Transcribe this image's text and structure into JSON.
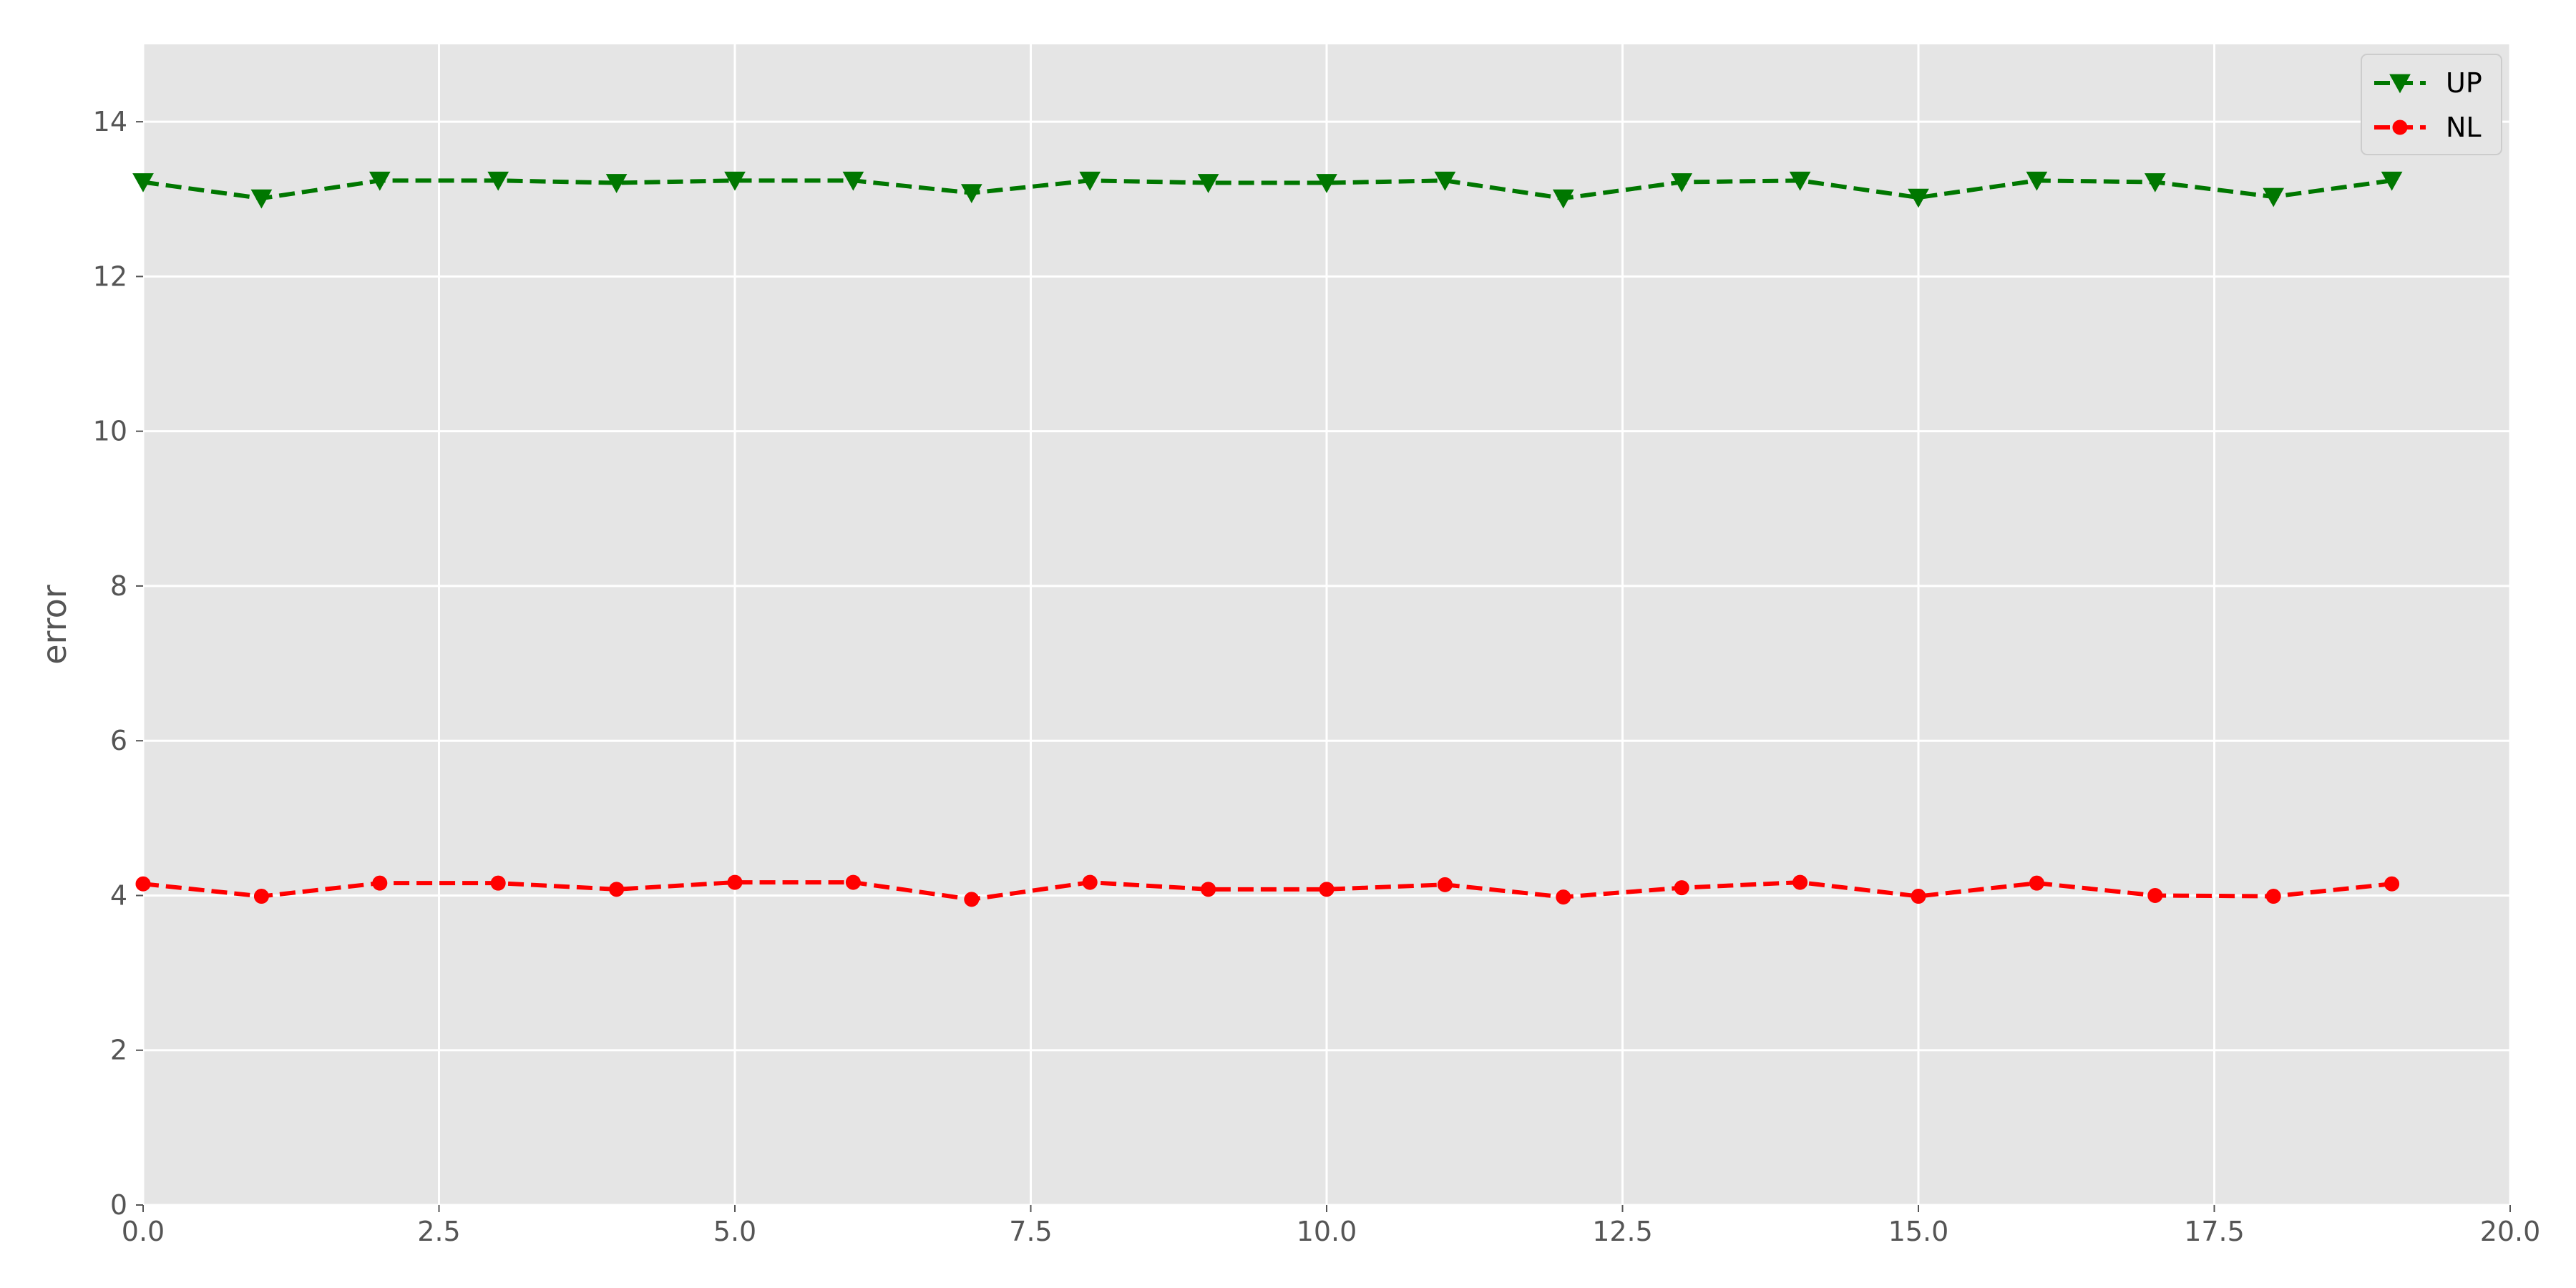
{
  "chart_data": {
    "type": "line",
    "title": "",
    "xlabel": "",
    "ylabel": "error",
    "xlim": [
      0,
      20
    ],
    "ylim": [
      0,
      15
    ],
    "xticks": [
      "0.0",
      "2.5",
      "5.0",
      "7.5",
      "10.0",
      "12.5",
      "15.0",
      "17.5",
      "20.0"
    ],
    "xtick_values": [
      0,
      2.5,
      5,
      7.5,
      10,
      12.5,
      15,
      17.5,
      20
    ],
    "yticks": [
      "0",
      "2",
      "4",
      "6",
      "8",
      "10",
      "12",
      "14"
    ],
    "ytick_values": [
      0,
      2,
      4,
      6,
      8,
      10,
      12,
      14
    ],
    "grid": true,
    "legend_position": "top-right",
    "x": [
      0,
      1,
      2,
      3,
      4,
      5,
      6,
      7,
      8,
      9,
      10,
      11,
      12,
      13,
      14,
      15,
      16,
      17,
      18,
      19
    ],
    "series": [
      {
        "name": "UP",
        "color": "#007700",
        "marker": "triangle-down",
        "line_style": "dashed",
        "values": [
          13.22,
          13.01,
          13.24,
          13.24,
          13.21,
          13.24,
          13.24,
          13.08,
          13.24,
          13.21,
          13.21,
          13.24,
          13.01,
          13.22,
          13.24,
          13.02,
          13.24,
          13.22,
          13.03,
          13.24
        ]
      },
      {
        "name": "NL",
        "color": "#ff0000",
        "marker": "circle",
        "line_style": "dashed",
        "values": [
          4.15,
          3.99,
          4.16,
          4.16,
          4.08,
          4.17,
          4.17,
          3.95,
          4.17,
          4.08,
          4.08,
          4.14,
          3.98,
          4.1,
          4.17,
          3.99,
          4.16,
          4.0,
          3.99,
          4.15
        ]
      }
    ]
  }
}
